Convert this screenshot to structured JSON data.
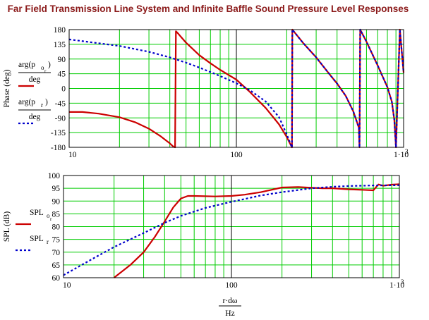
{
  "title": "Far Field Transmission Line System and Infinite Baffle Sound Pressure Level Responses",
  "colors": {
    "title": "#8b1a1a",
    "grid_major": "#000000",
    "grid_minor": "#00cc00",
    "series_red": "#cc0000",
    "series_blue": "#0000cc",
    "plot_bg": "#ffffff"
  },
  "chart_data": [
    {
      "type": "line",
      "xscale": "log",
      "xlim": [
        10,
        1000
      ],
      "ylim": [
        -180,
        180
      ],
      "yticks": [
        "180",
        "135",
        "90",
        "45",
        "0",
        "-45",
        "-90",
        "-135",
        "-180"
      ],
      "xticks": [
        "10",
        "100",
        "1·10"
      ],
      "xtick_sup": "3",
      "ylabel": "Phase (deg)",
      "legend": {
        "red_num": "arg(p",
        "red_sub": "o",
        "red_subsub": "r",
        "red_close": ")",
        "red_den": "deg",
        "blue_num": "arg(p",
        "blue_sub": "r",
        "blue_close": ")",
        "blue_den": "deg"
      },
      "series": [
        {
          "color": "red",
          "x": [
            10,
            12,
            15,
            20,
            25,
            30,
            35,
            40,
            42,
            43,
            43.5,
            45,
            50,
            60,
            70,
            80,
            100,
            120,
            150,
            180,
            200,
            210,
            215,
            216,
            220,
            250,
            300,
            350,
            400,
            450,
            500,
            540,
            545,
            550,
            600,
            700,
            800,
            850,
            880,
            900,
            950,
            1000
          ],
          "y": [
            -72,
            -72,
            -77,
            -88,
            -104,
            -123,
            -145,
            -168,
            -178,
            -180,
            175,
            167,
            140,
            102,
            77,
            57,
            27,
            -10,
            -60,
            -110,
            -148,
            -170,
            -180,
            180,
            175,
            140,
            95,
            52,
            15,
            -22,
            -70,
            -120,
            -180,
            180,
            143,
            70,
            4,
            -40,
            -95,
            -180,
            180,
            48
          ]
        },
        {
          "color": "blue",
          "x": [
            10,
            20,
            30,
            40,
            50,
            60,
            70,
            80,
            100,
            120,
            150,
            180,
            200,
            210,
            215,
            216,
            220,
            250,
            300,
            350,
            400,
            450,
            500,
            540,
            545,
            550,
            600,
            700,
            800,
            850,
            880,
            900,
            950,
            1000
          ],
          "y": [
            150,
            130,
            112,
            95,
            79,
            64,
            50,
            38,
            16,
            -5,
            -40,
            -88,
            -140,
            -168,
            -180,
            180,
            175,
            140,
            95,
            52,
            15,
            -22,
            -70,
            -120,
            -180,
            180,
            143,
            70,
            4,
            -40,
            -95,
            -180,
            180,
            48
          ]
        }
      ]
    },
    {
      "type": "line",
      "xscale": "log",
      "xlim": [
        10,
        1000
      ],
      "ylim": [
        60,
        100
      ],
      "yticks": [
        "100",
        "95",
        "90",
        "85",
        "80",
        "75",
        "70",
        "65",
        "60"
      ],
      "xticks": [
        "10",
        "100",
        "1·10"
      ],
      "xtick_sup": "3",
      "ylabel": "SPL (dB)",
      "xlabel_num": "r·dω",
      "xlabel_den": "Hz",
      "legend": {
        "red_name": "SPL",
        "red_sub": "o",
        "red_subsub": "r",
        "blue_name": "SPL",
        "blue_sub": "r"
      },
      "series": [
        {
          "color": "red",
          "x": [
            20,
            25,
            30,
            35,
            40,
            45,
            50,
            55,
            60,
            80,
            100,
            120,
            150,
            200,
            250,
            300,
            350,
            400,
            500,
            600,
            700,
            750,
            800,
            900,
            1000
          ],
          "y": [
            60,
            65,
            70,
            76,
            82,
            87.5,
            91,
            92,
            92,
            91.8,
            92,
            92.5,
            93.5,
            95.3,
            95.5,
            95.2,
            95,
            95,
            94.6,
            94.4,
            94.2,
            96.5,
            96,
            96.4,
            96.6
          ]
        },
        {
          "color": "blue",
          "x": [
            10,
            15,
            20,
            30,
            40,
            50,
            70,
            100,
            150,
            200,
            300,
            400,
            500,
            700,
            1000
          ],
          "y": [
            61,
            67.5,
            72,
            77.5,
            81.5,
            84.2,
            87.3,
            89.7,
            92.2,
            93.5,
            95,
            95.6,
            95.9,
            96.1,
            96.2
          ]
        }
      ]
    }
  ]
}
